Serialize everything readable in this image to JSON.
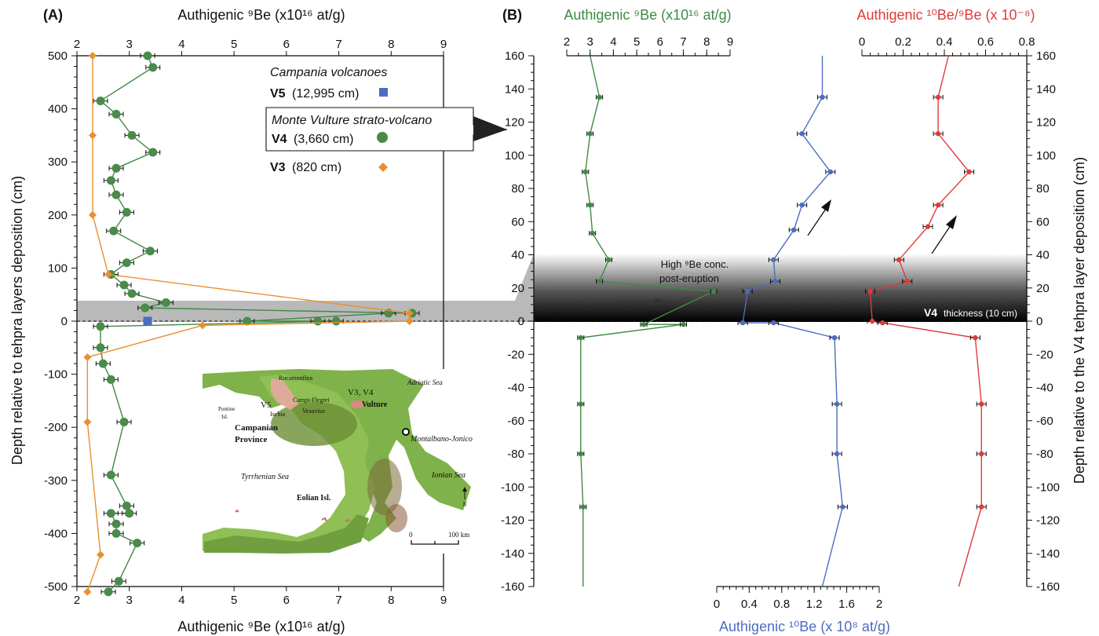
{
  "colors": {
    "green": "#3f8a45",
    "green_marker": "#4a8a4a",
    "orange": "#e8902e",
    "blue": "#4d6cc2",
    "red": "#e03a3a",
    "band": "#b9b9b9",
    "map_land": "#7fb24a",
    "map_sea": "#ffffff"
  },
  "panel_a": {
    "label": "(A)",
    "top_axis_label": "Authigenic ⁹Be (x10¹⁶ at/g)",
    "bottom_axis_label": "Authigenic ⁹Be (x10¹⁶ at/g)",
    "y_axis_label": "Depth relative to tehpra layers deposition (cm)",
    "legend": {
      "group1_title": "Campania volcanoes",
      "v5_label": "V5",
      "v5_detail": "(12,995 cm)",
      "group2_title": "Monte Vulture strato-volcano",
      "v4_label": "V4",
      "v4_detail": "(3,660 cm)",
      "v3_label": "V3",
      "v3_detail": "(820 cm)"
    },
    "map": {
      "adriatic": "Adriatic Sea",
      "rocamonfina": "Rocamonfina",
      "v3": "V3",
      "comma": ",",
      "v4": "V4",
      "vulture": "Vulture",
      "v5": "V5",
      "campi_flegrei": "Campi-Flegrei",
      "pontine": "Pontine",
      "pontine2": "Isl.",
      "ischia": "Ischia",
      "vesuvius": "Vesuvius",
      "campanian": "Campanian",
      "province": "Province",
      "montalbano": "Montalbano-Jonico",
      "tyrrhenian": "Tyrrhenian Sea",
      "ionian": "Ionian Sea",
      "eolian": "Eolian Isl.",
      "north": "N",
      "scale0": "0",
      "scale100": "100 km"
    }
  },
  "panel_b": {
    "label": "(B)",
    "top_left_axis_label": "Authigenic ⁹Be (x10¹⁶ at/g)",
    "top_right_axis_label": "Authigenic ¹⁰Be/⁹Be (x 10⁻⁸)",
    "bottom_axis_label": "Authigenic ¹⁰Be (x 10⁸ at/g)",
    "y_axis_label": "Depth relative to the V4 tehpra layer deposition (cm)",
    "annotation_line1": "High ⁹Be conc.",
    "annotation_line2": "post-eruption",
    "v4_thickness_bold": "V4",
    "v4_thickness_rest": "thickness (10 cm)"
  },
  "chart_data": [
    {
      "type": "scatter",
      "panel": "A",
      "title": "",
      "xlabel": "Authigenic ⁹Be (x10¹⁶ at/g)",
      "ylabel": "Depth relative to tehpra layers deposition (cm)",
      "xlim": [
        2,
        9
      ],
      "ylim": [
        -500,
        500
      ],
      "xticks": [
        2,
        3,
        4,
        5,
        6,
        7,
        8,
        9
      ],
      "yticks": [
        500,
        400,
        300,
        200,
        100,
        0,
        -100,
        -200,
        -300,
        -400,
        -500
      ],
      "grid": false,
      "legend_position": "top-right",
      "band_cm": [
        0,
        40
      ],
      "series": [
        {
          "name": "V4",
          "marker": "circle",
          "points": [
            [
              3.35,
              500
            ],
            [
              3.45,
              478
            ],
            [
              2.45,
              415
            ],
            [
              2.75,
              390
            ],
            [
              3.05,
              350
            ],
            [
              3.45,
              318
            ],
            [
              2.75,
              288
            ],
            [
              2.65,
              265
            ],
            [
              2.75,
              238
            ],
            [
              2.95,
              205
            ],
            [
              2.7,
              170
            ],
            [
              3.4,
              132
            ],
            [
              2.95,
              110
            ],
            [
              2.65,
              88
            ],
            [
              2.9,
              68
            ],
            [
              3.05,
              52
            ],
            [
              3.7,
              35
            ],
            [
              3.3,
              25
            ],
            [
              8.4,
              15
            ],
            [
              7.95,
              15
            ],
            [
              5.25,
              0
            ],
            [
              6.6,
              0
            ],
            [
              6.95,
              0
            ],
            [
              2.45,
              -10
            ],
            [
              2.45,
              -50
            ],
            [
              2.5,
              -80
            ],
            [
              2.65,
              -110
            ],
            [
              2.9,
              -190
            ],
            [
              2.65,
              -290
            ],
            [
              2.95,
              -348
            ],
            [
              3.0,
              -362
            ],
            [
              2.65,
              -362
            ],
            [
              2.75,
              -382
            ],
            [
              2.75,
              -400
            ],
            [
              3.15,
              -418
            ],
            [
              2.8,
              -490
            ],
            [
              2.6,
              -510
            ]
          ]
        },
        {
          "name": "V3",
          "marker": "diamond",
          "points": [
            [
              2.3,
              500
            ],
            [
              2.3,
              350
            ],
            [
              2.3,
              200
            ],
            [
              2.6,
              88
            ],
            [
              8.35,
              15
            ],
            [
              8.35,
              0
            ],
            [
              4.4,
              -8
            ],
            [
              2.2,
              -68
            ],
            [
              2.2,
              -190
            ],
            [
              2.45,
              -440
            ],
            [
              2.2,
              -510
            ]
          ]
        },
        {
          "name": "V5",
          "marker": "square",
          "points": [
            [
              3.35,
              0
            ]
          ]
        }
      ]
    },
    {
      "type": "line",
      "panel": "B",
      "title": "",
      "ylabel": "Depth relative to the V4 tehpra layer deposition (cm)",
      "ylim": [
        -160,
        160
      ],
      "yticks": [
        160,
        140,
        120,
        100,
        80,
        60,
        40,
        20,
        0,
        -20,
        -40,
        -60,
        -80,
        -100,
        -120,
        -140,
        -160
      ],
      "grid": false,
      "band_cm": [
        0,
        40
      ],
      "series": [
        {
          "name": "Authigenic ⁹Be (x10¹⁶ at/g)",
          "axis": "top-left",
          "xlim": [
            2,
            9
          ],
          "xticks": [
            2,
            3,
            4,
            5,
            6,
            7,
            8,
            9
          ],
          "points": [
            [
              3.0,
              160
            ],
            [
              3.4,
              135
            ],
            [
              3.0,
              113
            ],
            [
              2.8,
              90
            ],
            [
              3.0,
              70
            ],
            [
              3.1,
              53
            ],
            [
              3.8,
              37
            ],
            [
              3.4,
              24
            ],
            [
              8.3,
              18
            ],
            [
              5.3,
              -2
            ],
            [
              7.0,
              -2
            ],
            [
              2.6,
              -10
            ],
            [
              2.6,
              -50
            ],
            [
              2.6,
              -80
            ],
            [
              2.7,
              -112
            ],
            [
              2.7,
              -160
            ]
          ]
        },
        {
          "name": "Authigenic ¹⁰Be (x 10⁸ at/g)",
          "axis": "bottom",
          "xlim": [
            0,
            2
          ],
          "xticks": [
            0,
            0.4,
            0.8,
            1.2,
            1.6,
            2
          ],
          "points": [
            [
              1.3,
              160
            ],
            [
              1.3,
              135
            ],
            [
              1.05,
              113
            ],
            [
              1.4,
              90
            ],
            [
              1.05,
              70
            ],
            [
              0.95,
              55
            ],
            [
              0.7,
              37
            ],
            [
              0.72,
              24
            ],
            [
              0.38,
              18
            ],
            [
              0.32,
              -1
            ],
            [
              0.7,
              -1
            ],
            [
              1.45,
              -10
            ],
            [
              1.48,
              -50
            ],
            [
              1.48,
              -80
            ],
            [
              1.55,
              -112
            ],
            [
              1.3,
              -160
            ]
          ]
        },
        {
          "name": "Authigenic ¹⁰Be/⁹Be (x 10⁻⁸)",
          "axis": "top-right",
          "xlim": [
            0,
            0.8
          ],
          "xticks": [
            0,
            0.2,
            0.4,
            0.6,
            0.8
          ],
          "points": [
            [
              0.42,
              160
            ],
            [
              0.37,
              135
            ],
            [
              0.37,
              113
            ],
            [
              0.52,
              90
            ],
            [
              0.37,
              70
            ],
            [
              0.32,
              57
            ],
            [
              0.18,
              37
            ],
            [
              0.22,
              24
            ],
            [
              0.04,
              18
            ],
            [
              0.05,
              0
            ],
            [
              0.1,
              -1
            ],
            [
              0.55,
              -10
            ],
            [
              0.58,
              -50
            ],
            [
              0.58,
              -80
            ],
            [
              0.58,
              -112
            ],
            [
              0.47,
              -160
            ]
          ]
        }
      ]
    }
  ]
}
